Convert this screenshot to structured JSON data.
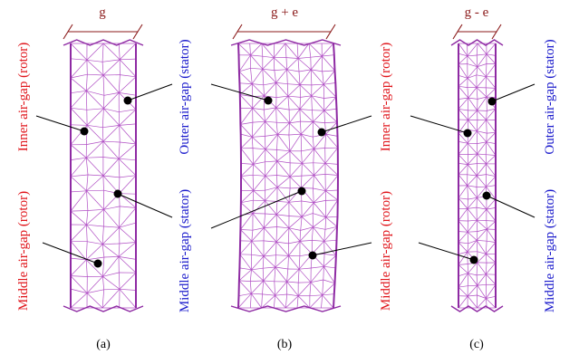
{
  "colors": {
    "mesh": "#b04ec4",
    "mesh_border": "#8e2aa3",
    "rotor_label": "#e0151b",
    "stator_label": "#1a1acc",
    "dimension": "#8b1a1a",
    "leader": "#000000"
  },
  "panels": [
    {
      "caption": "(a)",
      "gap_label": "g",
      "labels": {
        "inner": "Inner air-gap (rotor)",
        "middle_rotor": "Middle air-gap (rotor)",
        "outer": "Outer air-gap (stator)",
        "middle_stator": "Middle air-gap (stator)"
      }
    },
    {
      "caption": "(b)",
      "gap_label": "g + e",
      "labels": {}
    },
    {
      "caption": "(c)",
      "gap_label": "g - e",
      "labels": {
        "inner": "Inner air-gap (rotor)",
        "middle_rotor": "Middle air-gap (rotor)",
        "outer": "Outer air-gap (stator)",
        "middle_stator": "Middle air-gap (stator)"
      }
    }
  ]
}
